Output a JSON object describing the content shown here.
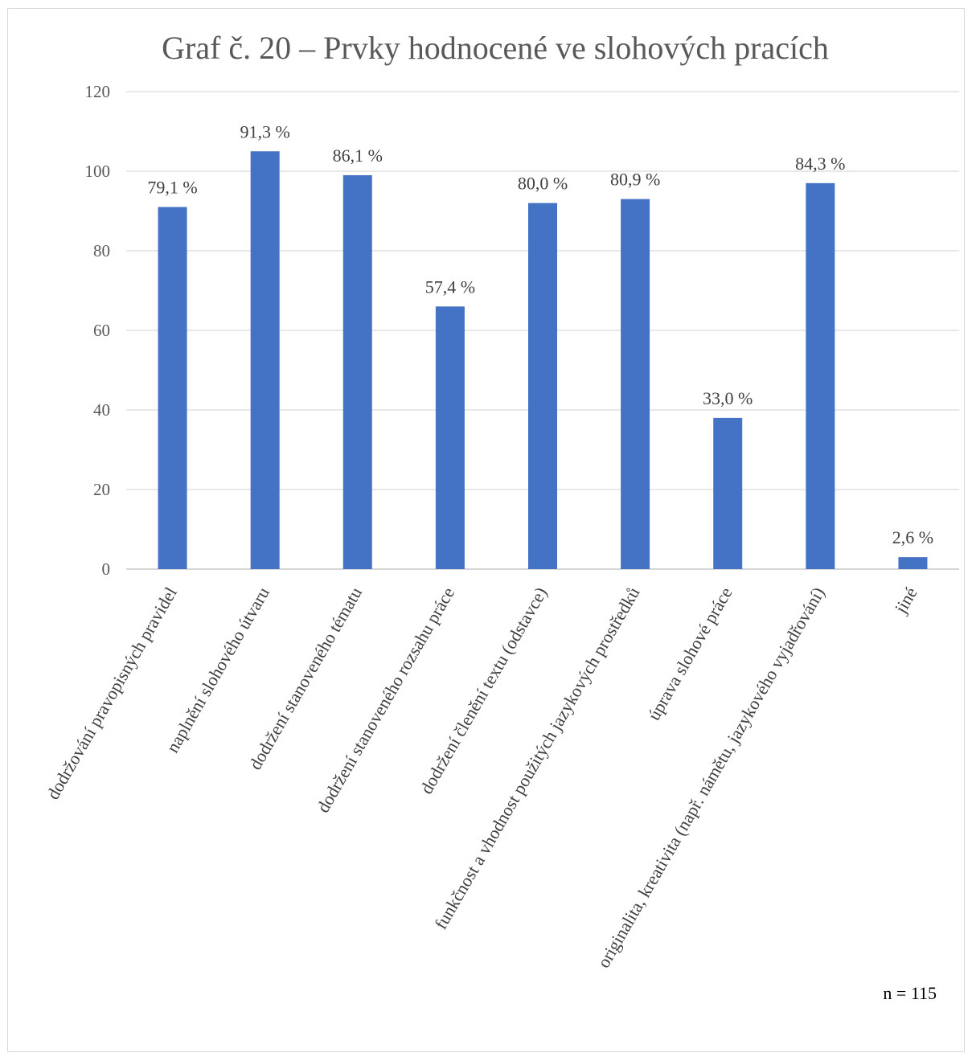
{
  "chart_data": {
    "type": "bar",
    "title": "Graf č. 20 – Prvky hodnocené ve slohových pracích",
    "categories": [
      "dodržování pravopisných pravidel",
      "naplnění slohového útvaru",
      "dodržení stanoveného tématu",
      "dodržení stanoveného rozsahu práce",
      "dodržení členění textu (odstavce)",
      "funkčnost a vhodnost použitých jazykových prostředků",
      "úprava slohové práce",
      "originalita, kreativita (např. námětu, jazykového vyjadřování)",
      "jiné"
    ],
    "values": [
      91,
      105,
      99,
      66,
      92,
      93,
      38,
      97,
      3
    ],
    "data_labels": [
      "79,1 %",
      "91,3 %",
      "86,1 %",
      "57,4 %",
      "80,0 %",
      "80,9 %",
      "33,0 %",
      "84,3 %",
      "2,6 %"
    ],
    "yticks": [
      0,
      20,
      40,
      60,
      80,
      100,
      120
    ],
    "ylim": [
      0,
      120
    ],
    "grid": true,
    "bar_color": "#4472c4",
    "note": "n = 115"
  }
}
